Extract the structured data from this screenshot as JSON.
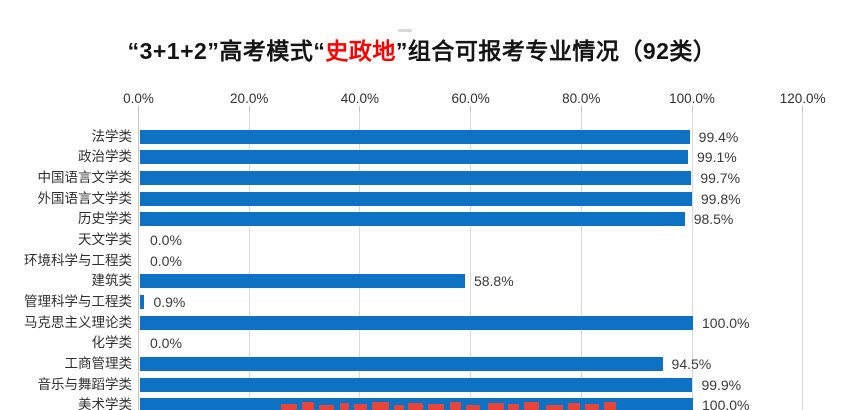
{
  "title": {
    "prefix": "“3+1+2”高考模式“",
    "highlight": "史政地",
    "suffix": "”组合可报考专业情况（92类）",
    "highlight_color": "#FF0000"
  },
  "chart_data": {
    "type": "bar",
    "orientation": "horizontal",
    "title": "“3+1+2”高考模式“史政地”组合可报考专业情况（92类）",
    "categories": [
      "法学类",
      "政治学类",
      "中国语言文学类",
      "外国语言文学类",
      "历史学类",
      "天文学类",
      "环境科学与工程类",
      "建筑类",
      "管理科学与工程类",
      "马克思主义理论类",
      "化学类",
      "工商管理类",
      "音乐与舞蹈学类",
      "美术学类"
    ],
    "values": [
      99.4,
      99.1,
      99.7,
      99.8,
      98.5,
      0.0,
      0.0,
      58.8,
      0.9,
      100.0,
      0.0,
      94.5,
      99.9,
      100.0
    ],
    "value_labels": [
      "99.4%",
      "99.1%",
      "99.7%",
      "99.8%",
      "98.5%",
      "0.0%",
      "0.0%",
      "58.8%",
      "0.9%",
      "100.0%",
      "0.0%",
      "94.5%",
      "99.9%",
      "100.0%"
    ],
    "x_ticks": [
      "0.0%",
      "20.0%",
      "40.0%",
      "60.0%",
      "80.0%",
      "100.0%",
      "120.0%"
    ],
    "x_tick_values": [
      0,
      20,
      40,
      60,
      80,
      100,
      120
    ],
    "xlim": [
      0,
      120
    ],
    "grid": "vertical-major",
    "legend": "none",
    "data_labels": "outside-end",
    "bar_color": "#0D72C4"
  },
  "colors": {
    "background": "#FFFFFF",
    "bar": "#0D72C4",
    "gridline": "#D9D9D9",
    "axis_line": "#C6C6C6",
    "title_text": "#151515",
    "category_text": "#303030",
    "value_text": "#3A3A3A",
    "tick_text": "#303030",
    "top_dash": "#D8D8D8",
    "watermark": "#E8453A"
  }
}
